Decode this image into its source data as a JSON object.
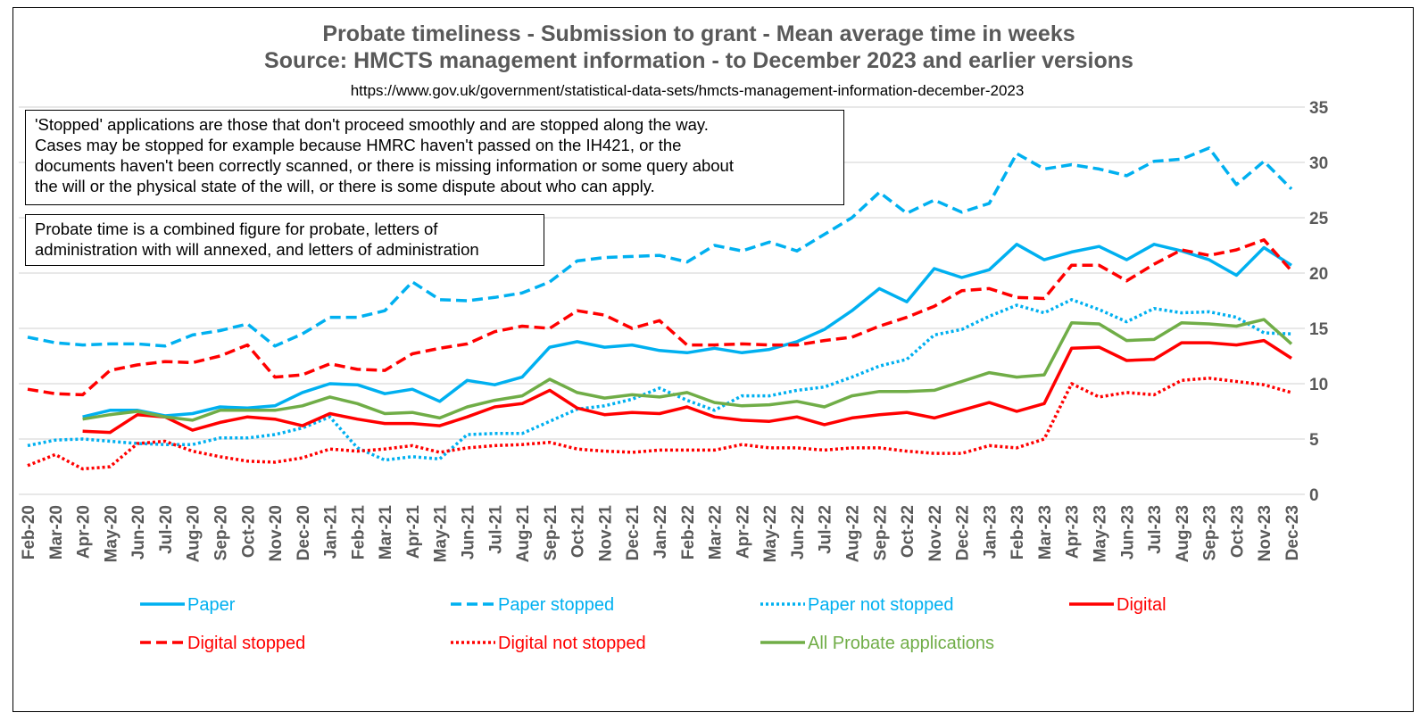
{
  "chart_data": {
    "type": "line",
    "title": "Probate timeliness - Submission to grant - Mean average time in weeks",
    "subtitle": "Source: HMCTS management information - to December 2023 and earlier versions",
    "source_url": "https://www.gov.uk/government/statistical-data-sets/hmcts-management-information-december-2023",
    "ylim": [
      0,
      35
    ],
    "yticks": [
      "0",
      "5",
      "10",
      "15",
      "20",
      "25",
      "30",
      "35"
    ],
    "grid": true,
    "legend_position": "bottom",
    "categories": [
      "Feb-20",
      "Mar-20",
      "Apr-20",
      "May-20",
      "Jun-20",
      "Jul-20",
      "Aug-20",
      "Sep-20",
      "Oct-20",
      "Nov-20",
      "Dec-20",
      "Jan-21",
      "Feb-21",
      "Mar-21",
      "Apr-21",
      "May-21",
      "Jun-21",
      "Jul-21",
      "Aug-21",
      "Sep-21",
      "Oct-21",
      "Nov-21",
      "Dec-21",
      "Jan-22",
      "Feb-22",
      "Mar-22",
      "Apr-22",
      "May-22",
      "Jun-22",
      "Jul-22",
      "Aug-22",
      "Sep-22",
      "Oct-22",
      "Nov-22",
      "Dec-22",
      "Jan-23",
      "Feb-23",
      "Mar-23",
      "Apr-23",
      "May-23",
      "Jun-23",
      "Jul-23",
      "Aug-23",
      "Sep-23",
      "Oct-23",
      "Nov-23",
      "Dec-23"
    ],
    "series": [
      {
        "name": "Paper",
        "color": "#00b0f0",
        "dash": "solid",
        "values": [
          null,
          null,
          7.0,
          7.6,
          7.6,
          7.1,
          7.3,
          7.9,
          7.8,
          8.0,
          9.2,
          10.0,
          9.9,
          9.1,
          9.5,
          8.4,
          10.3,
          9.9,
          10.6,
          13.3,
          13.8,
          13.3,
          13.5,
          13.0,
          12.8,
          13.2,
          12.8,
          13.1,
          13.8,
          14.9,
          16.6,
          18.6,
          17.4,
          20.4,
          19.6,
          20.3,
          22.6,
          21.2,
          21.9,
          22.4,
          21.2,
          22.6,
          22.0,
          21.2,
          19.8,
          22.3,
          20.7
        ]
      },
      {
        "name": "Paper stopped",
        "color": "#00b0f0",
        "dash": "dashed",
        "values": [
          14.2,
          13.7,
          13.5,
          13.6,
          13.6,
          13.4,
          14.4,
          14.8,
          15.4,
          13.4,
          14.5,
          16.0,
          16.0,
          16.6,
          19.2,
          17.6,
          17.5,
          17.8,
          18.2,
          19.2,
          21.1,
          21.4,
          21.5,
          21.6,
          21.0,
          22.5,
          22.0,
          22.8,
          22.0,
          23.5,
          25.0,
          27.3,
          25.4,
          26.6,
          25.5,
          26.3,
          30.8,
          29.4,
          29.8,
          29.4,
          28.8,
          30.1,
          30.3,
          31.3,
          28.0,
          30.1,
          27.6
        ]
      },
      {
        "name": "Paper not stopped",
        "color": "#00b0f0",
        "dash": "dotted",
        "values": [
          4.4,
          4.9,
          5.0,
          4.8,
          4.6,
          4.5,
          4.5,
          5.1,
          5.1,
          5.4,
          6.0,
          7.0,
          4.2,
          3.1,
          3.4,
          3.2,
          5.4,
          5.5,
          5.5,
          6.6,
          7.7,
          8.0,
          8.6,
          9.6,
          8.5,
          7.6,
          8.9,
          8.9,
          9.4,
          9.7,
          10.6,
          11.6,
          12.2,
          14.4,
          14.9,
          16.1,
          17.1,
          16.4,
          17.6,
          16.7,
          15.6,
          16.8,
          16.4,
          16.5,
          16.0,
          14.6,
          14.5
        ]
      },
      {
        "name": "Digital",
        "color": "#ff0000",
        "dash": "solid",
        "values": [
          null,
          null,
          5.7,
          5.6,
          7.2,
          7.0,
          5.8,
          6.5,
          7.0,
          6.8,
          6.2,
          7.3,
          6.8,
          6.4,
          6.4,
          6.2,
          7.0,
          7.9,
          8.2,
          9.4,
          7.8,
          7.2,
          7.4,
          7.3,
          7.9,
          7.0,
          6.7,
          6.6,
          7.0,
          6.3,
          6.9,
          7.2,
          7.4,
          6.9,
          7.6,
          8.3,
          7.5,
          8.2,
          13.2,
          13.3,
          12.1,
          12.2,
          13.7,
          13.7,
          13.5,
          13.9,
          12.3
        ]
      },
      {
        "name": "Digital stopped",
        "color": "#ff0000",
        "dash": "dashed",
        "values": [
          9.5,
          9.1,
          9.0,
          11.2,
          11.7,
          12.0,
          11.9,
          12.5,
          13.5,
          10.6,
          10.8,
          11.8,
          11.3,
          11.2,
          12.7,
          13.2,
          13.6,
          14.7,
          15.2,
          15.0,
          16.6,
          16.2,
          15.0,
          15.7,
          13.5,
          13.5,
          13.6,
          13.5,
          13.5,
          13.9,
          14.2,
          15.2,
          16.0,
          17.0,
          18.4,
          18.6,
          17.8,
          17.7,
          20.7,
          20.7,
          19.3,
          20.8,
          22.1,
          21.6,
          22.1,
          23.0,
          20.2
        ]
      },
      {
        "name": "Digital not stopped",
        "color": "#ff0000",
        "dash": "dotted",
        "values": [
          2.6,
          3.6,
          2.3,
          2.5,
          4.6,
          4.8,
          3.9,
          3.4,
          3.0,
          2.9,
          3.3,
          4.1,
          3.9,
          4.1,
          4.4,
          3.8,
          4.2,
          4.4,
          4.5,
          4.7,
          4.1,
          3.9,
          3.8,
          4.0,
          4.0,
          4.0,
          4.5,
          4.2,
          4.2,
          4.0,
          4.2,
          4.2,
          3.9,
          3.7,
          3.7,
          4.4,
          4.2,
          5.0,
          10.0,
          8.8,
          9.2,
          9.0,
          10.3,
          10.5,
          10.2,
          9.9,
          9.2
        ]
      },
      {
        "name": "All Probate applications",
        "color": "#70ad47",
        "dash": "solid",
        "values": [
          null,
          null,
          6.8,
          7.2,
          7.5,
          7.0,
          6.7,
          7.6,
          7.6,
          7.6,
          8.0,
          8.8,
          8.2,
          7.3,
          7.4,
          6.9,
          7.9,
          8.5,
          8.9,
          10.4,
          9.2,
          8.7,
          9.0,
          8.8,
          9.2,
          8.3,
          8.0,
          8.1,
          8.4,
          7.9,
          8.9,
          9.3,
          9.3,
          9.4,
          10.2,
          11.0,
          10.6,
          10.8,
          15.5,
          15.4,
          13.9,
          14.0,
          15.5,
          15.4,
          15.2,
          15.8,
          13.6
        ]
      }
    ]
  },
  "notes": {
    "stopped": "'Stopped' applications are those that don't proceed smoothly and are stopped along the way.\nCases may be stopped for example because HMRC haven't passed on the IH421, or the\ndocuments haven't been correctly scanned, or there is missing information or some query about\nthe will or the physical state of the will, or there is some dispute about who can apply.",
    "probate_time": "Probate time is a combined figure for probate, letters of\nadministration with will annexed, and letters of administration"
  }
}
